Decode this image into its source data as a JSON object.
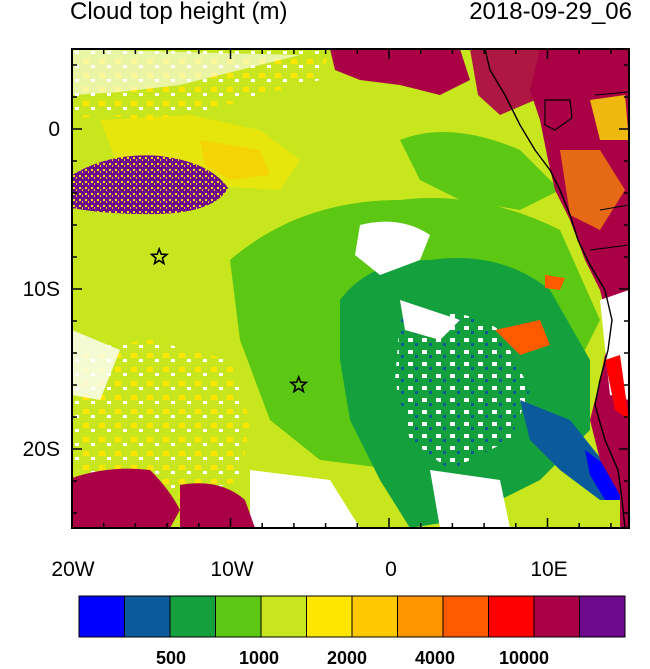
{
  "header": {
    "title": "Cloud top height (m)",
    "datetime": "2018-09-29_06"
  },
  "map": {
    "lat_labels": [
      "0",
      "10S",
      "20S"
    ],
    "lon_labels": [
      "20W",
      "10W",
      "0",
      "10E"
    ],
    "markers": [
      {
        "name": "star-marker-north",
        "lon": -14.5,
        "lat": -8
      },
      {
        "name": "star-marker-south",
        "lon": -5.7,
        "lat": -16
      }
    ]
  },
  "colorbar": {
    "colors": [
      "#0000ff",
      "#0a5a9c",
      "#14a03c",
      "#5cc814",
      "#c8e61e",
      "#ffe600",
      "#ffc800",
      "#ff9600",
      "#ff5a00",
      "#ff0000",
      "#aa0046",
      "#6e0a8c"
    ],
    "labels": [
      "500",
      "1000",
      "2000",
      "4000",
      "10000"
    ]
  }
}
